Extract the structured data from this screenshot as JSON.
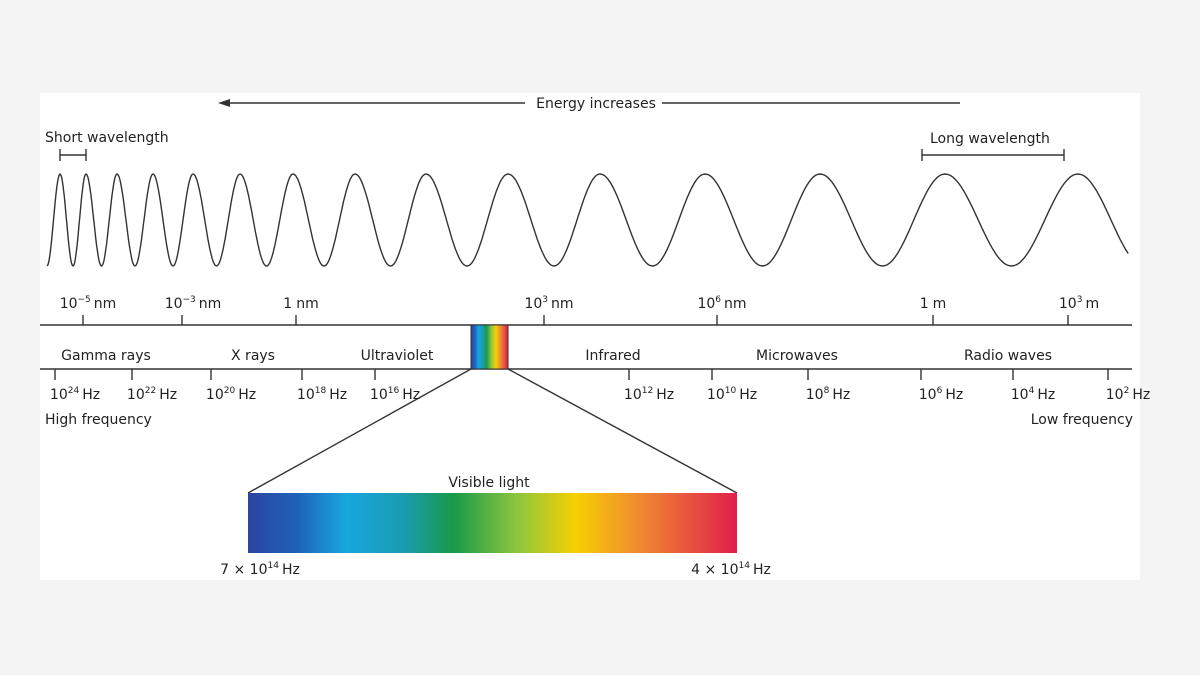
{
  "energy_arrow": "Energy increases",
  "short_wavelength": "Short wavelength",
  "long_wavelength": "Long wavelength",
  "wavelength_scale": [
    {
      "base": "10",
      "exp": "−5",
      "unit": "nm"
    },
    {
      "base": "10",
      "exp": "−3",
      "unit": "nm"
    },
    {
      "base": "1",
      "unit": "nm"
    },
    {
      "base": "10",
      "exp": "3",
      "unit": "nm"
    },
    {
      "base": "10",
      "exp": "6",
      "unit": "nm"
    },
    {
      "base": "1",
      "unit": "m"
    },
    {
      "base": "10",
      "exp": "3",
      "unit": "m"
    }
  ],
  "bands": [
    "Gamma rays",
    "X rays",
    "Ultraviolet",
    "Infrared",
    "Microwaves",
    "Radio waves"
  ],
  "frequency_scale": [
    {
      "base": "10",
      "exp": "24",
      "unit": "Hz"
    },
    {
      "base": "10",
      "exp": "22",
      "unit": "Hz"
    },
    {
      "base": "10",
      "exp": "20",
      "unit": "Hz"
    },
    {
      "base": "10",
      "exp": "18",
      "unit": "Hz"
    },
    {
      "base": "10",
      "exp": "16",
      "unit": "Hz"
    },
    {
      "base": "10",
      "exp": "12",
      "unit": "Hz"
    },
    {
      "base": "10",
      "exp": "10",
      "unit": "Hz"
    },
    {
      "base": "10",
      "exp": "8",
      "unit": "Hz"
    },
    {
      "base": "10",
      "exp": "6",
      "unit": "Hz"
    },
    {
      "base": "10",
      "exp": "4",
      "unit": "Hz"
    },
    {
      "base": "10",
      "exp": "2",
      "unit": "Hz"
    }
  ],
  "high_frequency": "High frequency",
  "low_frequency": "Low frequency",
  "visible_light": {
    "label": "Visible light",
    "high": {
      "base": "7 × 10",
      "exp": "14",
      "unit": "Hz"
    },
    "low": {
      "base": "4 × 10",
      "exp": "14",
      "unit": "Hz"
    }
  }
}
